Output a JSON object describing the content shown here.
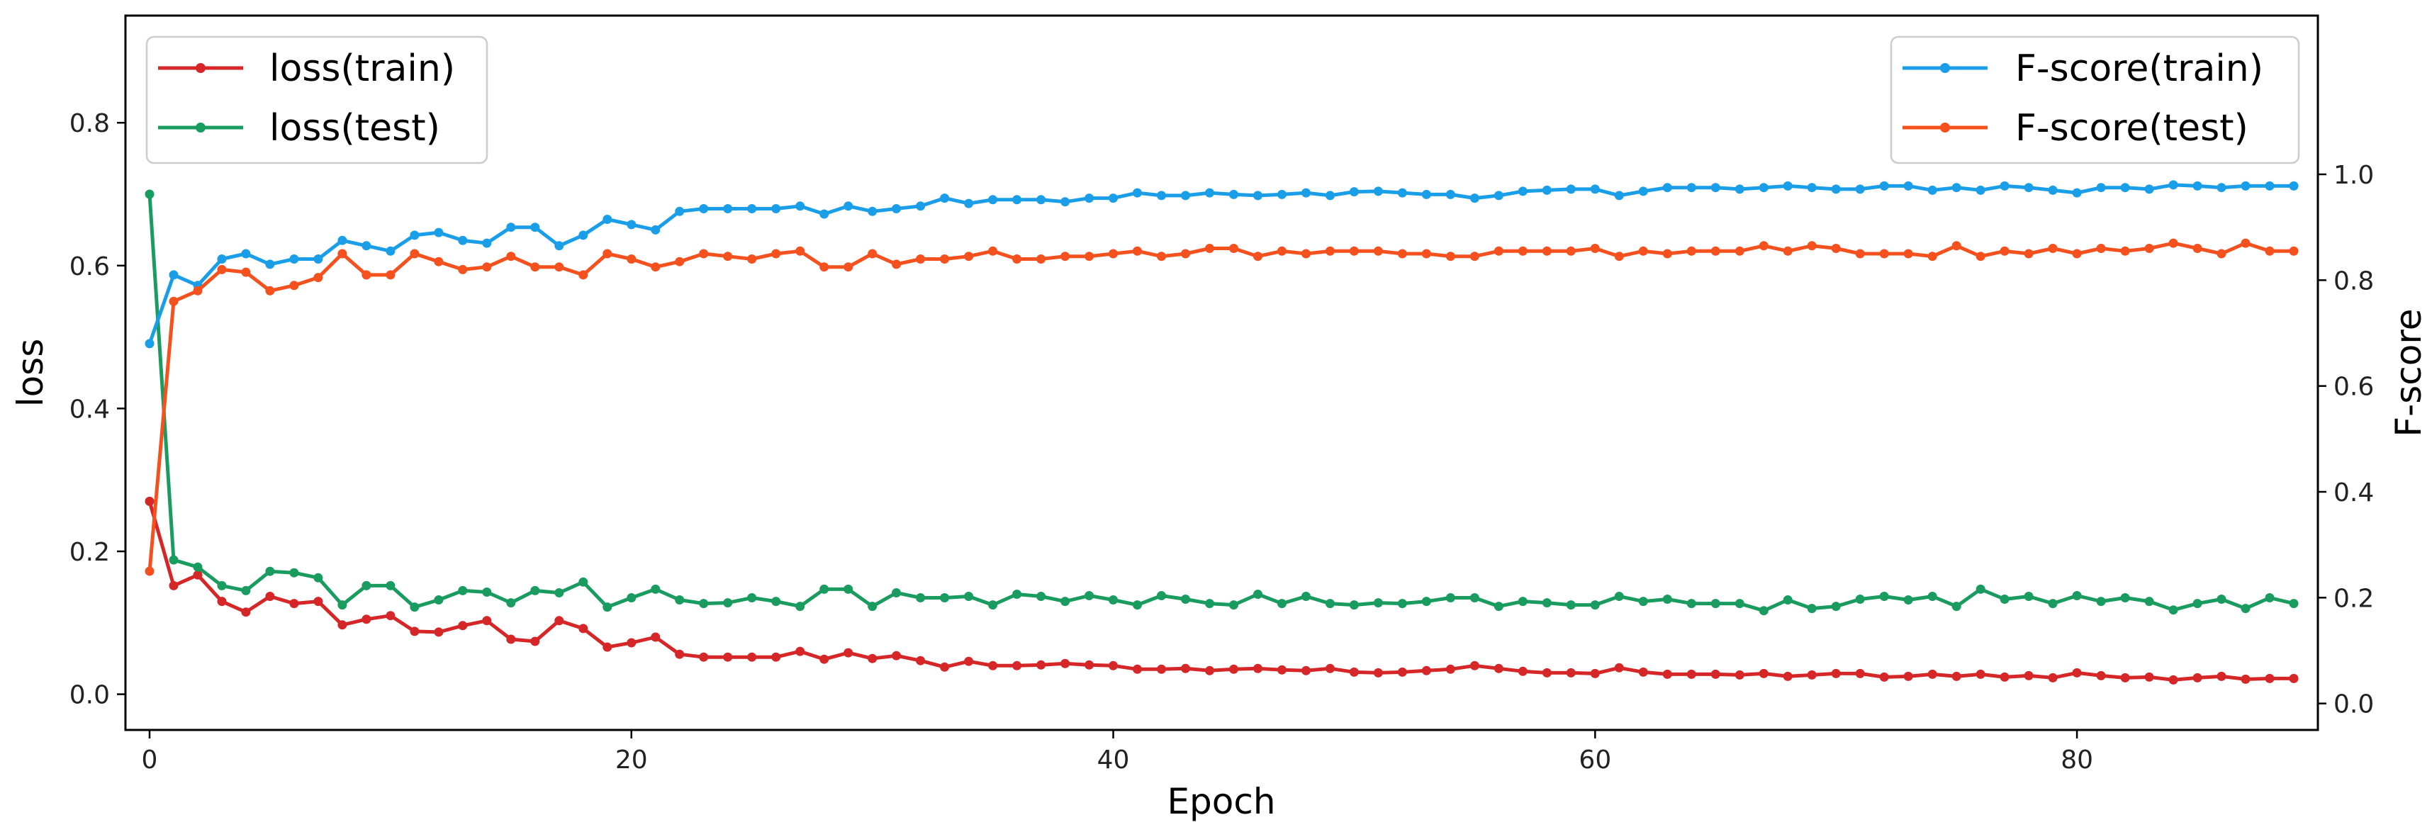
{
  "chart_data": {
    "type": "line",
    "x_axis": {
      "label": "Epoch",
      "range": [
        -1,
        90
      ],
      "ticks": [
        0,
        20,
        40,
        60,
        80
      ],
      "tick_labels": [
        "0",
        "20",
        "40",
        "60",
        "80"
      ]
    },
    "y_left": {
      "label": "loss",
      "range": [
        -0.05,
        0.95
      ],
      "ticks": [
        0.0,
        0.2,
        0.4,
        0.6,
        0.8
      ],
      "tick_labels": [
        "0.0",
        "0.2",
        "0.4",
        "0.6",
        "0.8"
      ]
    },
    "y_right": {
      "label": "F-score",
      "range": [
        -0.05,
        1.3
      ],
      "ticks": [
        0.0,
        0.2,
        0.4,
        0.6,
        0.8,
        1.0
      ],
      "tick_labels": [
        "0.0",
        "0.2",
        "0.4",
        "0.6",
        "0.8",
        "1.0"
      ]
    },
    "grid": false,
    "legends": [
      {
        "placement": "top-left",
        "entries": [
          "loss(train)",
          "loss(test)"
        ]
      },
      {
        "placement": "top-right",
        "entries": [
          "F-score(train)",
          "F-score(test)"
        ]
      }
    ],
    "series": [
      {
        "name": "loss(train)",
        "axis": "left",
        "color": "#d62728",
        "values": [
          0.27,
          0.152,
          0.167,
          0.13,
          0.115,
          0.137,
          0.127,
          0.13,
          0.097,
          0.105,
          0.11,
          0.088,
          0.087,
          0.096,
          0.103,
          0.077,
          0.074,
          0.103,
          0.092,
          0.066,
          0.072,
          0.08,
          0.056,
          0.052,
          0.052,
          0.052,
          0.052,
          0.06,
          0.049,
          0.058,
          0.05,
          0.054,
          0.047,
          0.038,
          0.046,
          0.04,
          0.04,
          0.041,
          0.043,
          0.041,
          0.04,
          0.035,
          0.035,
          0.036,
          0.033,
          0.035,
          0.036,
          0.034,
          0.033,
          0.036,
          0.031,
          0.03,
          0.031,
          0.033,
          0.035,
          0.04,
          0.036,
          0.032,
          0.03,
          0.03,
          0.029,
          0.037,
          0.031,
          0.028,
          0.028,
          0.028,
          0.027,
          0.029,
          0.025,
          0.027,
          0.029,
          0.029,
          0.024,
          0.025,
          0.028,
          0.025,
          0.028,
          0.024,
          0.026,
          0.023,
          0.03,
          0.026,
          0.023,
          0.024,
          0.02,
          0.023,
          0.025,
          0.021,
          0.022,
          0.022
        ]
      },
      {
        "name": "loss(test)",
        "axis": "left",
        "color": "#1a9b5f",
        "values": [
          0.7,
          0.188,
          0.178,
          0.152,
          0.145,
          0.172,
          0.17,
          0.163,
          0.125,
          0.152,
          0.152,
          0.122,
          0.132,
          0.145,
          0.143,
          0.128,
          0.145,
          0.142,
          0.157,
          0.122,
          0.135,
          0.147,
          0.132,
          0.127,
          0.128,
          0.135,
          0.13,
          0.123,
          0.147,
          0.147,
          0.123,
          0.142,
          0.135,
          0.135,
          0.137,
          0.125,
          0.14,
          0.137,
          0.13,
          0.138,
          0.132,
          0.125,
          0.138,
          0.133,
          0.127,
          0.125,
          0.14,
          0.127,
          0.137,
          0.127,
          0.125,
          0.128,
          0.127,
          0.13,
          0.135,
          0.135,
          0.123,
          0.13,
          0.128,
          0.125,
          0.125,
          0.137,
          0.13,
          0.133,
          0.127,
          0.127,
          0.127,
          0.117,
          0.132,
          0.12,
          0.123,
          0.133,
          0.137,
          0.132,
          0.137,
          0.123,
          0.147,
          0.133,
          0.137,
          0.127,
          0.138,
          0.13,
          0.135,
          0.13,
          0.118,
          0.127,
          0.133,
          0.12,
          0.135,
          0.127
        ]
      },
      {
        "name": "F-score(train)",
        "axis": "right",
        "color": "#1a9ee8",
        "values": [
          0.68,
          0.81,
          0.79,
          0.84,
          0.85,
          0.83,
          0.84,
          0.84,
          0.875,
          0.865,
          0.855,
          0.885,
          0.89,
          0.875,
          0.87,
          0.9,
          0.9,
          0.865,
          0.885,
          0.915,
          0.905,
          0.895,
          0.93,
          0.935,
          0.935,
          0.935,
          0.935,
          0.94,
          0.925,
          0.94,
          0.93,
          0.935,
          0.94,
          0.955,
          0.945,
          0.952,
          0.952,
          0.952,
          0.948,
          0.955,
          0.955,
          0.965,
          0.96,
          0.96,
          0.965,
          0.962,
          0.96,
          0.962,
          0.965,
          0.96,
          0.967,
          0.968,
          0.965,
          0.962,
          0.962,
          0.955,
          0.96,
          0.968,
          0.97,
          0.972,
          0.972,
          0.96,
          0.968,
          0.975,
          0.975,
          0.975,
          0.972,
          0.975,
          0.978,
          0.975,
          0.972,
          0.972,
          0.978,
          0.978,
          0.97,
          0.975,
          0.97,
          0.978,
          0.975,
          0.97,
          0.965,
          0.975,
          0.975,
          0.972,
          0.98,
          0.978,
          0.975,
          0.978,
          0.978,
          0.978
        ]
      },
      {
        "name": "F-score(test)",
        "axis": "right",
        "color": "#f4511e",
        "values": [
          0.25,
          0.76,
          0.78,
          0.82,
          0.815,
          0.78,
          0.79,
          0.805,
          0.85,
          0.81,
          0.81,
          0.85,
          0.835,
          0.82,
          0.825,
          0.845,
          0.825,
          0.825,
          0.81,
          0.85,
          0.84,
          0.825,
          0.835,
          0.85,
          0.845,
          0.84,
          0.85,
          0.855,
          0.825,
          0.825,
          0.85,
          0.83,
          0.84,
          0.84,
          0.845,
          0.855,
          0.84,
          0.84,
          0.845,
          0.845,
          0.85,
          0.855,
          0.845,
          0.85,
          0.86,
          0.86,
          0.845,
          0.855,
          0.85,
          0.855,
          0.855,
          0.855,
          0.85,
          0.85,
          0.845,
          0.845,
          0.855,
          0.855,
          0.855,
          0.855,
          0.86,
          0.845,
          0.855,
          0.85,
          0.855,
          0.855,
          0.855,
          0.865,
          0.855,
          0.865,
          0.86,
          0.85,
          0.85,
          0.85,
          0.845,
          0.865,
          0.845,
          0.855,
          0.85,
          0.86,
          0.85,
          0.86,
          0.855,
          0.86,
          0.87,
          0.86,
          0.85,
          0.87,
          0.855,
          0.855
        ]
      }
    ]
  }
}
